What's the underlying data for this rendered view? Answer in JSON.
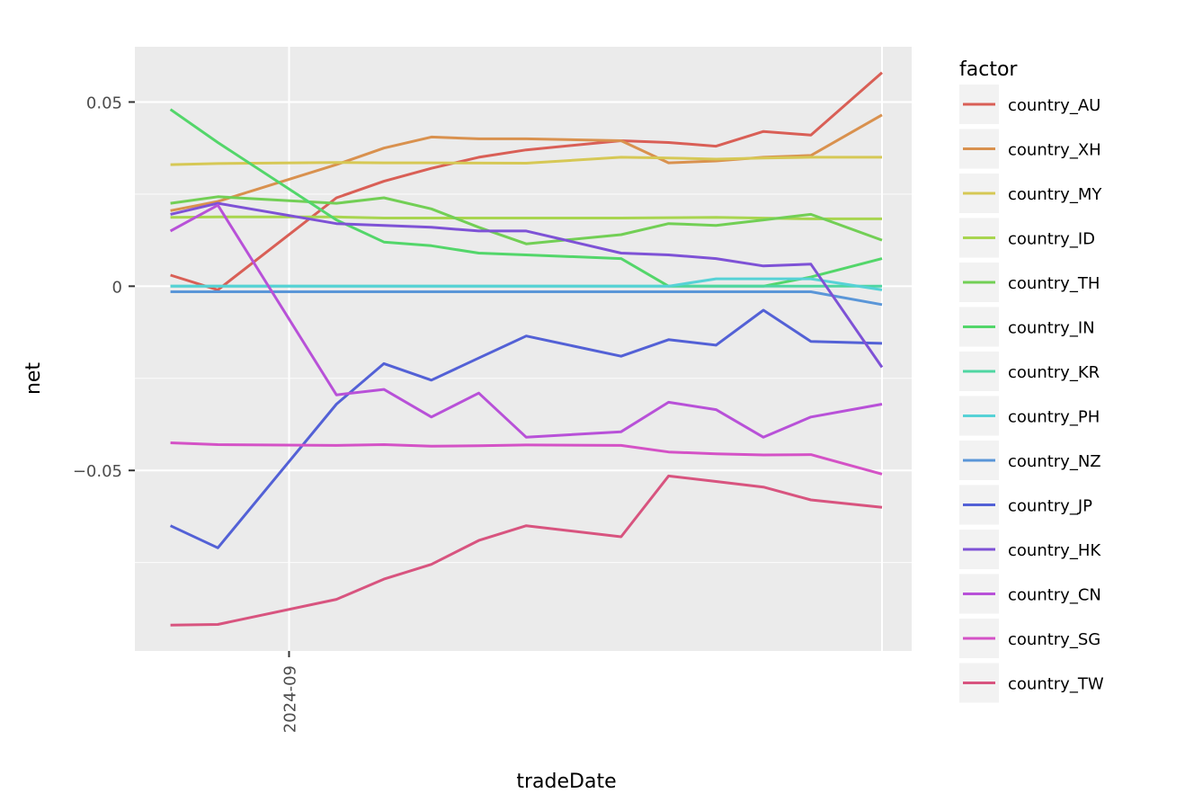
{
  "chart_data": {
    "type": "line",
    "xlabel": "tradeDate",
    "ylabel": "net",
    "xtick_labels": [
      "2024-09"
    ],
    "ytick_labels": [
      "0.05",
      "0",
      "−0.05"
    ],
    "ylim": [
      -0.099,
      0.065
    ],
    "grid": true,
    "legend_title": "factor",
    "legend_placement": "right",
    "x": [
      "2024-08-22",
      "2024-08-26",
      "2024-08-30",
      "2024-09-03",
      "2024-09-06",
      "2024-09-09",
      "2024-09-12",
      "2024-09-16",
      "2024-09-20",
      "2024-09-24",
      "2024-09-28",
      "2024-10-01",
      "2024-10-05",
      "2024-10-09",
      "2024-10-13",
      "2024-10-18"
    ],
    "x_days": [
      -10,
      -6,
      -3,
      0,
      4,
      8,
      12,
      16,
      20,
      24,
      28,
      32,
      36,
      40,
      44,
      50
    ],
    "series": [
      {
        "name": "country_AU",
        "color": "#d95f56",
        "values": [
          0.003,
          -0.001,
          null,
          null,
          0.024,
          0.0285,
          0.032,
          0.035,
          0.037,
          null,
          0.0395,
          0.039,
          0.038,
          0.042,
          0.041,
          0.058
        ]
      },
      {
        "name": "country_XH",
        "color": "#d9914e",
        "values": [
          0.0205,
          0.023,
          null,
          null,
          0.033,
          0.0375,
          0.0405,
          0.04,
          0.04,
          null,
          0.0395,
          0.0335,
          0.034,
          0.035,
          0.0355,
          0.0465
        ]
      },
      {
        "name": "country_MY",
        "color": "#d6c855",
        "values": [
          0.033,
          0.0333,
          null,
          null,
          0.0336,
          0.0335,
          0.0335,
          null,
          0.0334,
          null,
          0.035,
          0.0348,
          0.0345,
          0.0348,
          0.035,
          0.035
        ]
      },
      {
        "name": "country_ID",
        "color": "#a8d54f",
        "values": [
          0.0187,
          0.0188,
          null,
          null,
          0.0188,
          0.0185,
          null,
          null,
          0.0185,
          null,
          0.0185,
          null,
          0.0187,
          null,
          0.0183,
          0.0183
        ]
      },
      {
        "name": "country_TH",
        "color": "#72cf55",
        "values": [
          0.0225,
          0.0243,
          null,
          null,
          0.0225,
          0.024,
          0.021,
          0.016,
          0.0115,
          null,
          0.014,
          0.017,
          0.0165,
          0.018,
          0.0195,
          0.0125
        ]
      },
      {
        "name": "country_IN",
        "color": "#53d66a",
        "values": [
          0.048,
          0.039,
          null,
          null,
          0.018,
          0.012,
          0.011,
          0.009,
          0.0085,
          null,
          0.0075,
          0.0,
          0.0,
          0.0,
          0.0025,
          0.0075
        ]
      },
      {
        "name": "country_KR",
        "color": "#4fd6a2",
        "values": [
          0.0,
          0.0,
          null,
          null,
          0.0,
          0.0,
          0.0,
          0.0,
          0.0,
          null,
          0.0,
          0.0,
          0.0,
          0.0,
          0.0,
          0.0
        ]
      },
      {
        "name": "country_PH",
        "color": "#56d2d6",
        "values": [
          0.0,
          0.0,
          null,
          null,
          0.0,
          0.0,
          0.0,
          0.0,
          0.0,
          null,
          0.0,
          0.0,
          0.002,
          0.002,
          0.002,
          -0.001
        ]
      },
      {
        "name": "country_NZ",
        "color": "#5a96d8",
        "values": [
          -0.0015,
          -0.0015,
          null,
          null,
          -0.0015,
          -0.0015,
          -0.0015,
          -0.0015,
          -0.0015,
          null,
          -0.0015,
          -0.0015,
          -0.0015,
          -0.0015,
          -0.0015,
          -0.005
        ]
      },
      {
        "name": "country_JP",
        "color": "#5361d6",
        "values": [
          -0.065,
          -0.071,
          null,
          null,
          -0.032,
          -0.021,
          -0.0255,
          -0.0195,
          -0.0135,
          null,
          -0.019,
          -0.0145,
          -0.016,
          -0.0065,
          -0.015,
          -0.0155
        ]
      },
      {
        "name": "country_HK",
        "color": "#7e52d6",
        "values": [
          0.0195,
          0.0225,
          null,
          null,
          0.017,
          0.0165,
          0.016,
          0.015,
          0.015,
          null,
          0.009,
          0.0085,
          0.0075,
          0.0055,
          0.006,
          -0.022
        ]
      },
      {
        "name": "country_CN",
        "color": "#b851d8",
        "values": [
          0.015,
          0.022,
          null,
          null,
          -0.0295,
          -0.028,
          -0.0355,
          -0.029,
          -0.041,
          null,
          -0.0395,
          -0.0315,
          -0.0335,
          -0.041,
          -0.0355,
          -0.032
        ]
      },
      {
        "name": "country_SG",
        "color": "#d452c6",
        "values": [
          -0.0425,
          -0.043,
          null,
          null,
          -0.0432,
          -0.043,
          -0.0434,
          -0.0433,
          -0.0431,
          null,
          -0.0432,
          -0.045,
          -0.0455,
          -0.0458,
          -0.0457,
          -0.051
        ]
      },
      {
        "name": "country_TW",
        "color": "#d8547f",
        "values": [
          -0.092,
          -0.0918,
          null,
          null,
          -0.085,
          -0.0795,
          -0.0755,
          -0.069,
          -0.065,
          null,
          -0.068,
          -0.0515,
          -0.053,
          -0.0545,
          -0.058,
          -0.06
        ]
      }
    ]
  }
}
